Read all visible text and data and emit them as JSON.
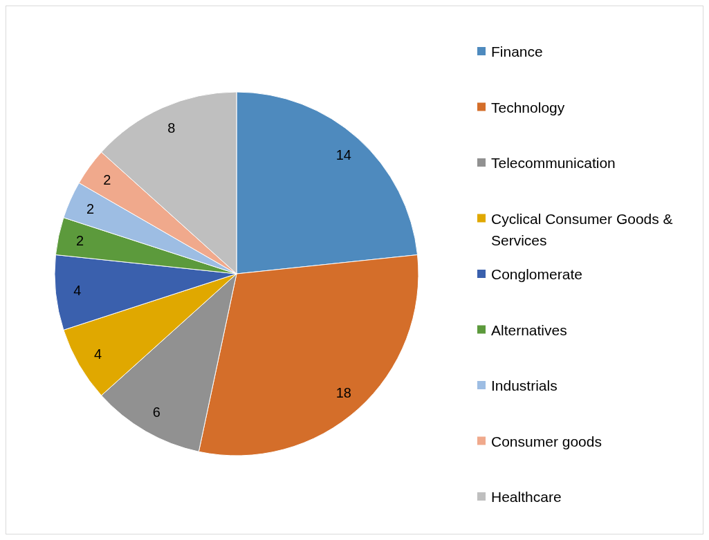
{
  "chart_data": {
    "type": "pie",
    "categories": [
      "Finance",
      "Technology",
      "Telecommunication",
      "Cyclical Consumer Goods & Services",
      "Conglomerate",
      "Alternatives",
      "Industrials",
      "Consumer goods",
      "Healthcare"
    ],
    "values": [
      14,
      18,
      6,
      4,
      4,
      2,
      2,
      2,
      8
    ],
    "colors": [
      "#4e8abe",
      "#d46e2a",
      "#919191",
      "#e0a800",
      "#3a60ad",
      "#5c9a3c",
      "#9dbde3",
      "#f0a98c",
      "#bfbfbf"
    ],
    "data_labels": true,
    "legend": "right"
  }
}
